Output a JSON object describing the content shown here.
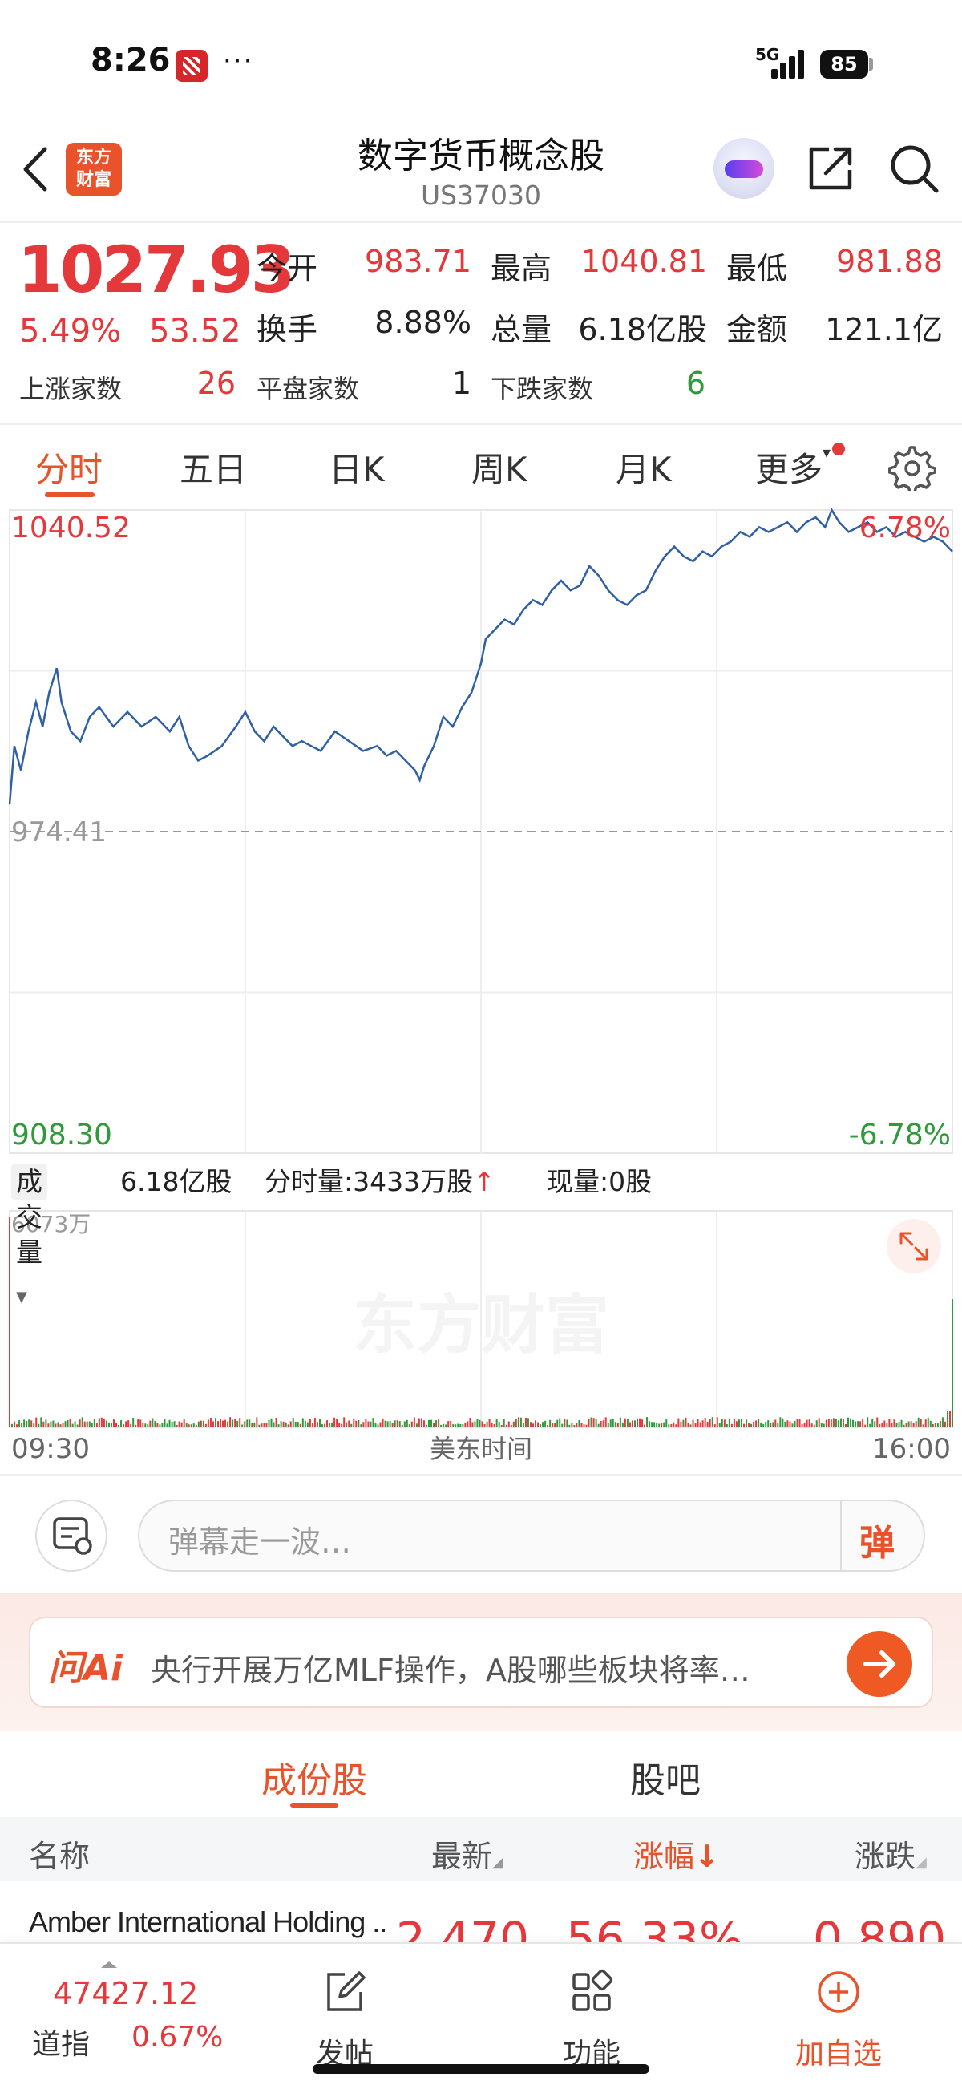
{
  "status_bar": {
    "time": "8:26",
    "dots": "···",
    "network": "5G",
    "battery": "85"
  },
  "header": {
    "title": "数字货币概念股",
    "code": "US37030",
    "logo_text_1": "东方",
    "logo_text_2": "财富"
  },
  "quote": {
    "price": "1027.93",
    "change_pct": "5.49%",
    "change_amt": "53.52",
    "open_label": "今开",
    "open": "983.71",
    "high_label": "最高",
    "high": "1040.81",
    "low_label": "最低",
    "low": "981.88",
    "turnover_label": "换手",
    "turnover": "8.88%",
    "volume_label": "总量",
    "volume": "6.18亿股",
    "amount_label": "金额",
    "amount": "121.1亿",
    "up_label": "上涨家数",
    "up_count": "26",
    "flat_label": "平盘家数",
    "flat_count": "1",
    "down_label": "下跌家数",
    "down_count": "6"
  },
  "tabs": [
    "分时",
    "五日",
    "日K",
    "周K",
    "月K",
    "更多"
  ],
  "chart_data": {
    "type": "line",
    "y_max_label": "1040.52",
    "y_min_label": "908.30",
    "prev_close_label": "974.41",
    "pct_max_label": "6.78%",
    "pct_min_label": "-6.78%",
    "y_range": [
      908.3,
      1040.52
    ],
    "prev_close": 974.41,
    "x_start": "09:30",
    "x_end": "16:00",
    "x_label": "美东时间",
    "watermark": "东方财富",
    "price_series": [
      [
        0,
        980
      ],
      [
        0.005,
        992
      ],
      [
        0.012,
        987
      ],
      [
        0.02,
        995
      ],
      [
        0.028,
        1001
      ],
      [
        0.035,
        996
      ],
      [
        0.042,
        1003
      ],
      [
        0.05,
        1008
      ],
      [
        0.055,
        1001
      ],
      [
        0.065,
        995
      ],
      [
        0.075,
        993
      ],
      [
        0.085,
        998
      ],
      [
        0.095,
        1000
      ],
      [
        0.11,
        996
      ],
      [
        0.125,
        999
      ],
      [
        0.14,
        996
      ],
      [
        0.155,
        998
      ],
      [
        0.17,
        995
      ],
      [
        0.18,
        998
      ],
      [
        0.19,
        992
      ],
      [
        0.2,
        989
      ],
      [
        0.21,
        990
      ],
      [
        0.225,
        992
      ],
      [
        0.24,
        996
      ],
      [
        0.25,
        999
      ],
      [
        0.26,
        995
      ],
      [
        0.27,
        993
      ],
      [
        0.28,
        996
      ],
      [
        0.29,
        994
      ],
      [
        0.3,
        992
      ],
      [
        0.31,
        993
      ],
      [
        0.32,
        992
      ],
      [
        0.33,
        991
      ],
      [
        0.345,
        995
      ],
      [
        0.36,
        993
      ],
      [
        0.375,
        991
      ],
      [
        0.39,
        992
      ],
      [
        0.4,
        990
      ],
      [
        0.41,
        991
      ],
      [
        0.42,
        989
      ],
      [
        0.43,
        987
      ],
      [
        0.435,
        985
      ],
      [
        0.44,
        988
      ],
      [
        0.45,
        992
      ],
      [
        0.46,
        998
      ],
      [
        0.47,
        996
      ],
      [
        0.48,
        1000
      ],
      [
        0.49,
        1003
      ],
      [
        0.5,
        1009
      ],
      [
        0.505,
        1014
      ],
      [
        0.515,
        1016
      ],
      [
        0.525,
        1018
      ],
      [
        0.535,
        1017
      ],
      [
        0.545,
        1020
      ],
      [
        0.555,
        1022
      ],
      [
        0.565,
        1021
      ],
      [
        0.575,
        1024
      ],
      [
        0.585,
        1026
      ],
      [
        0.595,
        1024
      ],
      [
        0.605,
        1025
      ],
      [
        0.615,
        1029
      ],
      [
        0.625,
        1027
      ],
      [
        0.635,
        1024
      ],
      [
        0.645,
        1022
      ],
      [
        0.655,
        1021
      ],
      [
        0.665,
        1023
      ],
      [
        0.675,
        1024
      ],
      [
        0.685,
        1028
      ],
      [
        0.695,
        1031
      ],
      [
        0.705,
        1033
      ],
      [
        0.715,
        1031
      ],
      [
        0.725,
        1030
      ],
      [
        0.735,
        1032
      ],
      [
        0.745,
        1031
      ],
      [
        0.755,
        1033
      ],
      [
        0.765,
        1034
      ],
      [
        0.775,
        1036
      ],
      [
        0.785,
        1035
      ],
      [
        0.795,
        1037
      ],
      [
        0.805,
        1036
      ],
      [
        0.815,
        1037
      ],
      [
        0.825,
        1038
      ],
      [
        0.835,
        1036
      ],
      [
        0.845,
        1038
      ],
      [
        0.855,
        1039
      ],
      [
        0.865,
        1037
      ],
      [
        0.872,
        1040.5
      ],
      [
        0.88,
        1038
      ],
      [
        0.89,
        1036
      ],
      [
        0.9,
        1037
      ],
      [
        0.91,
        1038
      ],
      [
        0.92,
        1036
      ],
      [
        0.93,
        1037
      ],
      [
        0.94,
        1035
      ],
      [
        0.95,
        1036
      ],
      [
        0.96,
        1035
      ],
      [
        0.97,
        1034
      ],
      [
        0.98,
        1035
      ],
      [
        0.99,
        1034
      ],
      [
        1.0,
        1032
      ]
    ]
  },
  "volume": {
    "legend_label": "成交量",
    "total": "6.18亿股",
    "interval_label": "分时量:3433万股",
    "now_label": "现量:0股",
    "y_max_label": "6073万"
  },
  "comment": {
    "placeholder": "弹幕走一波…",
    "danmu_label": "弹"
  },
  "ai_banner": {
    "logo": "问Ai",
    "text": "央行开展万亿MLF操作，A股哪些板块将率…"
  },
  "subtabs": [
    "成份股",
    "股吧"
  ],
  "list": {
    "headers": {
      "name": "名称",
      "latest": "最新",
      "pct": "涨幅",
      "change": "涨跌"
    },
    "rows": [
      {
        "name": "Amber International Holding ..",
        "latest": "2.470",
        "pct": "56.33%",
        "change": "0.890"
      }
    ]
  },
  "bottom_bar": {
    "index_value": "47427.12",
    "index_name": "道指",
    "index_pct": "0.67%",
    "post_label": "发帖",
    "func_label": "功能",
    "add_label": "加自选"
  },
  "colors": {
    "up": "#e5383b",
    "down": "#2e9a3a",
    "accent": "#e8532b",
    "line": "#2f5fa5"
  }
}
